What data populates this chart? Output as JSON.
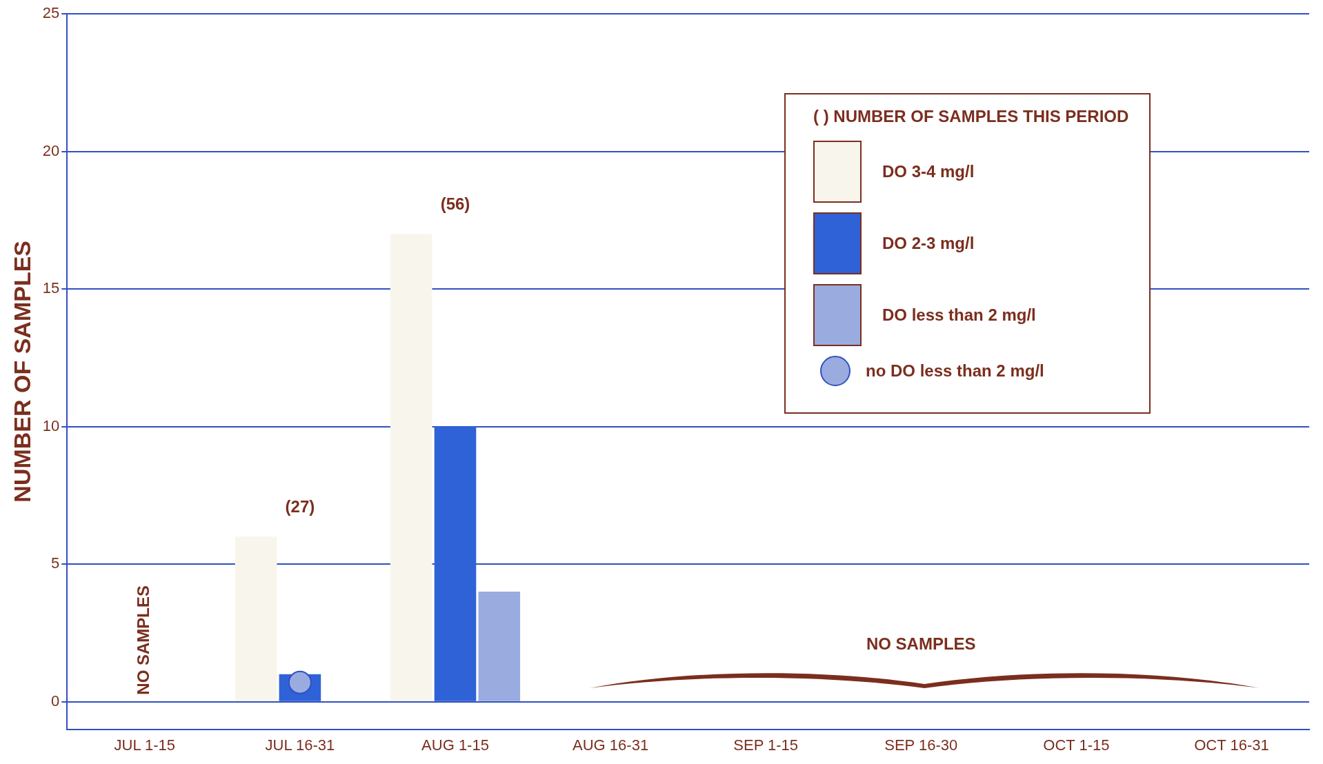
{
  "chart_data": {
    "type": "bar",
    "ylabel": "NUMBER OF SAMPLES",
    "legend_title": "( )  NUMBER OF SAMPLES THIS PERIOD",
    "categories": [
      "JUL 1-15",
      "JUL 16-31",
      "AUG 1-15",
      "AUG 16-31",
      "SEP 1-15",
      "SEP 16-30",
      "OCT 1-15",
      "OCT 16-31"
    ],
    "series": [
      {
        "name": "DO 3-4 mg/l",
        "color": "#f8f5ec",
        "values": [
          null,
          6,
          17,
          null,
          null,
          null,
          null,
          null
        ]
      },
      {
        "name": "DO 2-3 mg/l",
        "color": "#2f62d6",
        "values": [
          null,
          1,
          10,
          null,
          null,
          null,
          null,
          null
        ]
      },
      {
        "name": "DO less than 2 mg/l",
        "color": "#9aabe0",
        "values": [
          null,
          null,
          4,
          null,
          null,
          null,
          null,
          null
        ]
      },
      {
        "name": "no DO less than 2 mg/l",
        "type": "scatter",
        "color": "#9aabe0",
        "x": [
          "JUL 16-31"
        ],
        "values": [
          0.7
        ]
      }
    ],
    "ylim": [
      -1,
      25
    ],
    "yticks": [
      0,
      5,
      10,
      15,
      20,
      25
    ],
    "grid": "y",
    "legend": "top right",
    "marker": "circle",
    "annotations": [
      "(27)",
      "(56)",
      "NO SAMPLES",
      "NO SAMPLES"
    ]
  }
}
